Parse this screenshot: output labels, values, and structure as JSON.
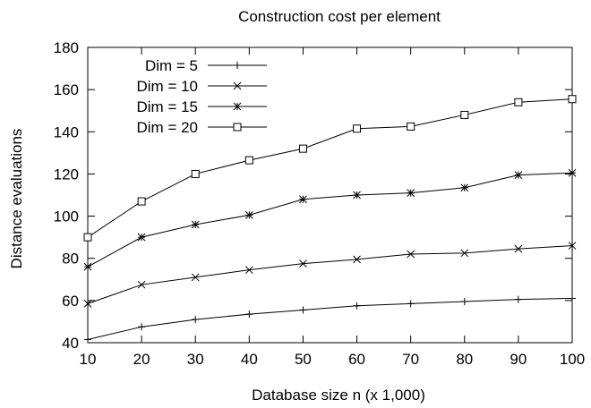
{
  "chart_data": {
    "type": "line",
    "title": "Construction cost per element",
    "xlabel": "Database size n (x 1,000)",
    "ylabel": "Distance evaluations",
    "x": [
      10,
      20,
      30,
      40,
      50,
      60,
      70,
      80,
      90,
      100
    ],
    "xlim": [
      10,
      100
    ],
    "ylim": [
      40,
      180
    ],
    "xticks": [
      10,
      20,
      30,
      40,
      50,
      60,
      70,
      80,
      90,
      100
    ],
    "yticks": [
      40,
      60,
      80,
      100,
      120,
      140,
      160,
      180
    ],
    "grid": false,
    "legend_position": "top-left",
    "series": [
      {
        "name": "Dim = 5",
        "marker": "plus",
        "values": [
          41.5,
          47.5,
          51,
          53.5,
          55.5,
          57.5,
          58.5,
          59.5,
          60.5,
          61
        ]
      },
      {
        "name": "Dim = 10",
        "marker": "cross",
        "values": [
          58.5,
          67.5,
          71,
          74.5,
          77.5,
          79.5,
          82,
          82.5,
          84.5,
          86
        ]
      },
      {
        "name": "Dim = 15",
        "marker": "star",
        "values": [
          76,
          90,
          96,
          100.5,
          108,
          110,
          111,
          113.5,
          119.5,
          120.5
        ]
      },
      {
        "name": "Dim = 20",
        "marker": "square",
        "values": [
          90,
          107,
          120,
          126.5,
          132,
          141.5,
          142.5,
          148,
          154,
          155.5
        ]
      }
    ]
  }
}
